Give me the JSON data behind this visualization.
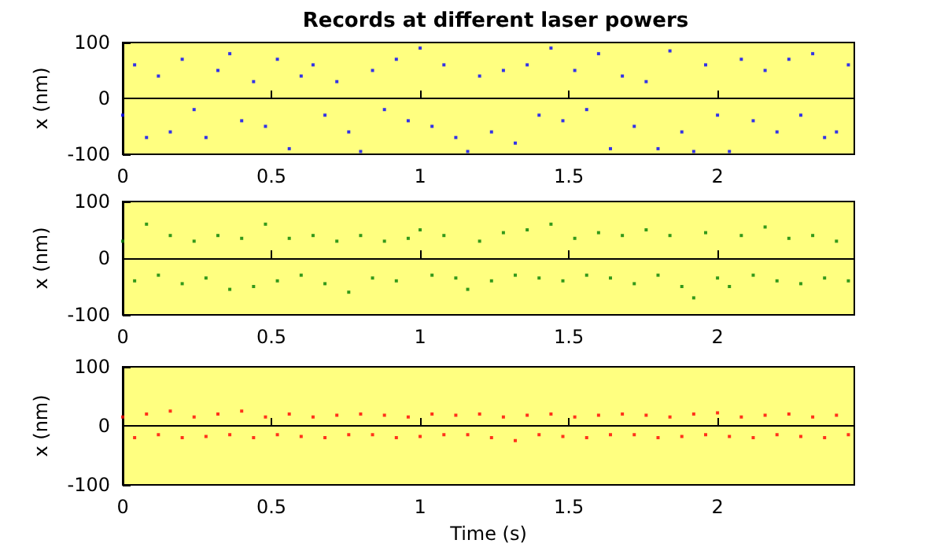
{
  "chart_data": [
    {
      "type": "scatter",
      "title": "Records at different laser powers",
      "ylabel": "x (nm)",
      "x": [
        0,
        0.04,
        0.08,
        0.12,
        0.16,
        0.2,
        0.24,
        0.28,
        0.32,
        0.36,
        0.4,
        0.44,
        0.48,
        0.52,
        0.56,
        0.6,
        0.64,
        0.68,
        0.72,
        0.76,
        0.8,
        0.84,
        0.88,
        0.92,
        0.96,
        1,
        1.04,
        1.08,
        1.12,
        1.16,
        1.2,
        1.24,
        1.28,
        1.32,
        1.36,
        1.4,
        1.44,
        1.48,
        1.52,
        1.56,
        1.6,
        1.64,
        1.68,
        1.72,
        1.76,
        1.8,
        1.84,
        1.88,
        1.92,
        1.96,
        2,
        2.04,
        2.08,
        2.12,
        2.16,
        2.2,
        2.24,
        2.28,
        2.32,
        2.36,
        2.4,
        2.44
      ],
      "series": [
        {
          "color": "#0000ff",
          "values": [
            -30,
            60,
            -70,
            40,
            -60,
            70,
            -20,
            -70,
            50,
            80,
            -40,
            30,
            -50,
            70,
            -90,
            40,
            60,
            -30,
            30,
            -60,
            -95,
            50,
            -20,
            70,
            -40,
            90,
            -50,
            60,
            -70,
            -95,
            40,
            -60,
            50,
            -80,
            60,
            -30,
            90,
            -40,
            50,
            -20,
            80,
            -90,
            40,
            -50,
            30,
            -90,
            85,
            -60,
            -95,
            60,
            -30,
            -95,
            70,
            -40,
            50,
            -60,
            70,
            -30,
            80,
            -70,
            -60,
            60
          ]
        }
      ],
      "xlim": [
        0,
        2.46
      ],
      "xticks": [
        0,
        0.5,
        1,
        1.5,
        2
      ],
      "ylim": [
        -100,
        100
      ],
      "yticks": [
        -100,
        0,
        100
      ]
    },
    {
      "type": "scatter",
      "ylabel": "x (nm)",
      "x": [
        0,
        0.04,
        0.08,
        0.12,
        0.16,
        0.2,
        0.24,
        0.28,
        0.32,
        0.36,
        0.4,
        0.44,
        0.48,
        0.52,
        0.56,
        0.6,
        0.64,
        0.68,
        0.72,
        0.76,
        0.8,
        0.84,
        0.88,
        0.92,
        0.96,
        1,
        1.04,
        1.08,
        1.12,
        1.16,
        1.2,
        1.24,
        1.28,
        1.32,
        1.36,
        1.4,
        1.44,
        1.48,
        1.52,
        1.56,
        1.6,
        1.64,
        1.68,
        1.72,
        1.76,
        1.8,
        1.84,
        1.88,
        1.92,
        1.96,
        2,
        2.04,
        2.08,
        2.12,
        2.16,
        2.2,
        2.24,
        2.28,
        2.32,
        2.36,
        2.4,
        2.44
      ],
      "series": [
        {
          "color": "#008000",
          "values": [
            30,
            -40,
            60,
            -30,
            40,
            -45,
            30,
            -35,
            40,
            -55,
            35,
            -50,
            60,
            -40,
            35,
            -30,
            40,
            -45,
            30,
            -60,
            40,
            -35,
            30,
            -40,
            35,
            50,
            -30,
            40,
            -35,
            -55,
            30,
            -40,
            45,
            -30,
            50,
            -35,
            60,
            -40,
            35,
            -30,
            45,
            -35,
            40,
            -45,
            50,
            -30,
            40,
            -50,
            -70,
            45,
            -35,
            -50,
            40,
            -30,
            55,
            -40,
            35,
            -45,
            40,
            -35,
            30,
            -40
          ]
        }
      ],
      "xlim": [
        0,
        2.46
      ],
      "xticks": [
        0,
        0.5,
        1,
        1.5,
        2
      ],
      "ylim": [
        -100,
        100
      ],
      "yticks": [
        -100,
        0,
        100
      ]
    },
    {
      "type": "scatter",
      "xlabel": "Time (s)",
      "ylabel": "x (nm)",
      "x": [
        0,
        0.04,
        0.08,
        0.12,
        0.16,
        0.2,
        0.24,
        0.28,
        0.32,
        0.36,
        0.4,
        0.44,
        0.48,
        0.52,
        0.56,
        0.6,
        0.64,
        0.68,
        0.72,
        0.76,
        0.8,
        0.84,
        0.88,
        0.92,
        0.96,
        1,
        1.04,
        1.08,
        1.12,
        1.16,
        1.2,
        1.24,
        1.28,
        1.32,
        1.36,
        1.4,
        1.44,
        1.48,
        1.52,
        1.56,
        1.6,
        1.64,
        1.68,
        1.72,
        1.76,
        1.8,
        1.84,
        1.88,
        1.92,
        1.96,
        2,
        2.04,
        2.08,
        2.12,
        2.16,
        2.2,
        2.24,
        2.28,
        2.32,
        2.36,
        2.4,
        2.44
      ],
      "series": [
        {
          "color": "#ff0000",
          "values": [
            15,
            -20,
            20,
            -15,
            25,
            -20,
            15,
            -18,
            20,
            -15,
            25,
            -20,
            15,
            -15,
            20,
            -18,
            15,
            -20,
            18,
            -15,
            20,
            -15,
            18,
            -20,
            15,
            -18,
            20,
            -15,
            18,
            -15,
            20,
            -20,
            15,
            -25,
            18,
            -15,
            20,
            -18,
            15,
            -20,
            18,
            -15,
            20,
            -15,
            18,
            -20,
            15,
            -18,
            20,
            -15,
            22,
            -18,
            15,
            -20,
            18,
            -15,
            20,
            -18,
            15,
            -20,
            18,
            -15
          ]
        }
      ],
      "xlim": [
        0,
        2.46
      ],
      "xticks": [
        0,
        0.5,
        1,
        1.5,
        2
      ],
      "ylim": [
        -100,
        100
      ],
      "yticks": [
        -100,
        0,
        100
      ]
    }
  ]
}
